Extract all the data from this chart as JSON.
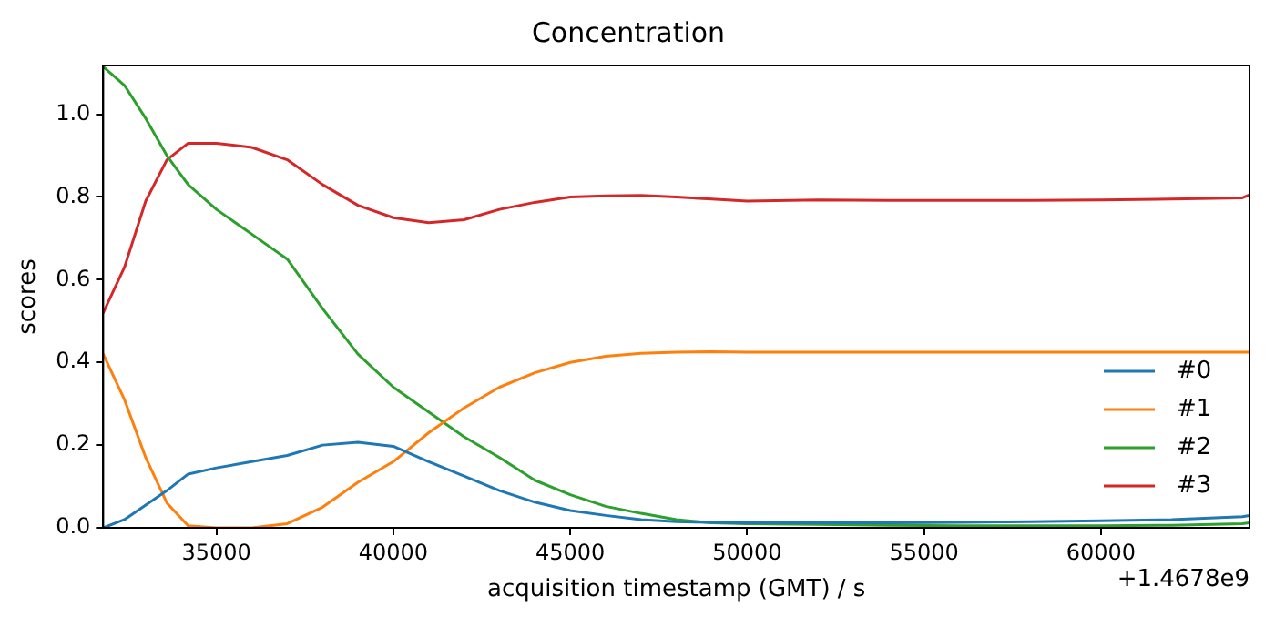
{
  "chart_data": {
    "type": "line",
    "title": "Concentration",
    "xlabel": "acquisition timestamp (GMT) / s",
    "ylabel": "scores",
    "x": [
      31800,
      32400,
      33000,
      33600,
      34200,
      35000,
      36000,
      37000,
      38000,
      39000,
      40000,
      41000,
      42000,
      43000,
      44000,
      45000,
      46000,
      47000,
      48000,
      49000,
      50000,
      52000,
      54000,
      56000,
      58000,
      60000,
      62000,
      64000,
      64200
    ],
    "series": [
      {
        "name": "#0",
        "color": "#1f77b4",
        "values": [
          0.0,
          0.02,
          0.055,
          0.09,
          0.13,
          0.145,
          0.16,
          0.175,
          0.2,
          0.207,
          0.197,
          0.16,
          0.125,
          0.09,
          0.062,
          0.042,
          0.03,
          0.02,
          0.015,
          0.013,
          0.012,
          0.012,
          0.012,
          0.013,
          0.015,
          0.017,
          0.02,
          0.027,
          0.03
        ]
      },
      {
        "name": "#1",
        "color": "#ff7f0e",
        "values": [
          0.42,
          0.31,
          0.17,
          0.06,
          0.005,
          0.0,
          0.0,
          0.01,
          0.05,
          0.11,
          0.16,
          0.23,
          0.29,
          0.34,
          0.375,
          0.4,
          0.415,
          0.422,
          0.425,
          0.426,
          0.425,
          0.425,
          0.425,
          0.425,
          0.425,
          0.425,
          0.425,
          0.425,
          0.425
        ]
      },
      {
        "name": "#2",
        "color": "#2ca02c",
        "values": [
          1.115,
          1.07,
          0.99,
          0.9,
          0.83,
          0.77,
          0.71,
          0.65,
          0.53,
          0.42,
          0.34,
          0.28,
          0.22,
          0.17,
          0.115,
          0.08,
          0.052,
          0.035,
          0.02,
          0.012,
          0.01,
          0.008,
          0.006,
          0.005,
          0.005,
          0.005,
          0.006,
          0.01,
          0.012
        ]
      },
      {
        "name": "#3",
        "color": "#d62728",
        "values": [
          0.52,
          0.63,
          0.79,
          0.89,
          0.93,
          0.93,
          0.92,
          0.89,
          0.83,
          0.78,
          0.75,
          0.738,
          0.745,
          0.77,
          0.787,
          0.8,
          0.803,
          0.804,
          0.8,
          0.795,
          0.79,
          0.793,
          0.792,
          0.792,
          0.792,
          0.793,
          0.795,
          0.798,
          0.805
        ]
      }
    ],
    "xlim": [
      31800,
      64200
    ],
    "xticks": [
      35000,
      40000,
      45000,
      50000,
      55000,
      60000
    ],
    "ylim": [
      0,
      1.118
    ],
    "yticks": [
      {
        "value": 0,
        "label": "0.0"
      },
      0.2,
      0.4,
      0.6,
      0.8,
      {
        "value": 1,
        "label": "1.0"
      }
    ],
    "grid": false,
    "legend": "bottom right",
    "marker": "none",
    "line_style": "solid",
    "annotations": [
      "+1.4678e9"
    ]
  }
}
